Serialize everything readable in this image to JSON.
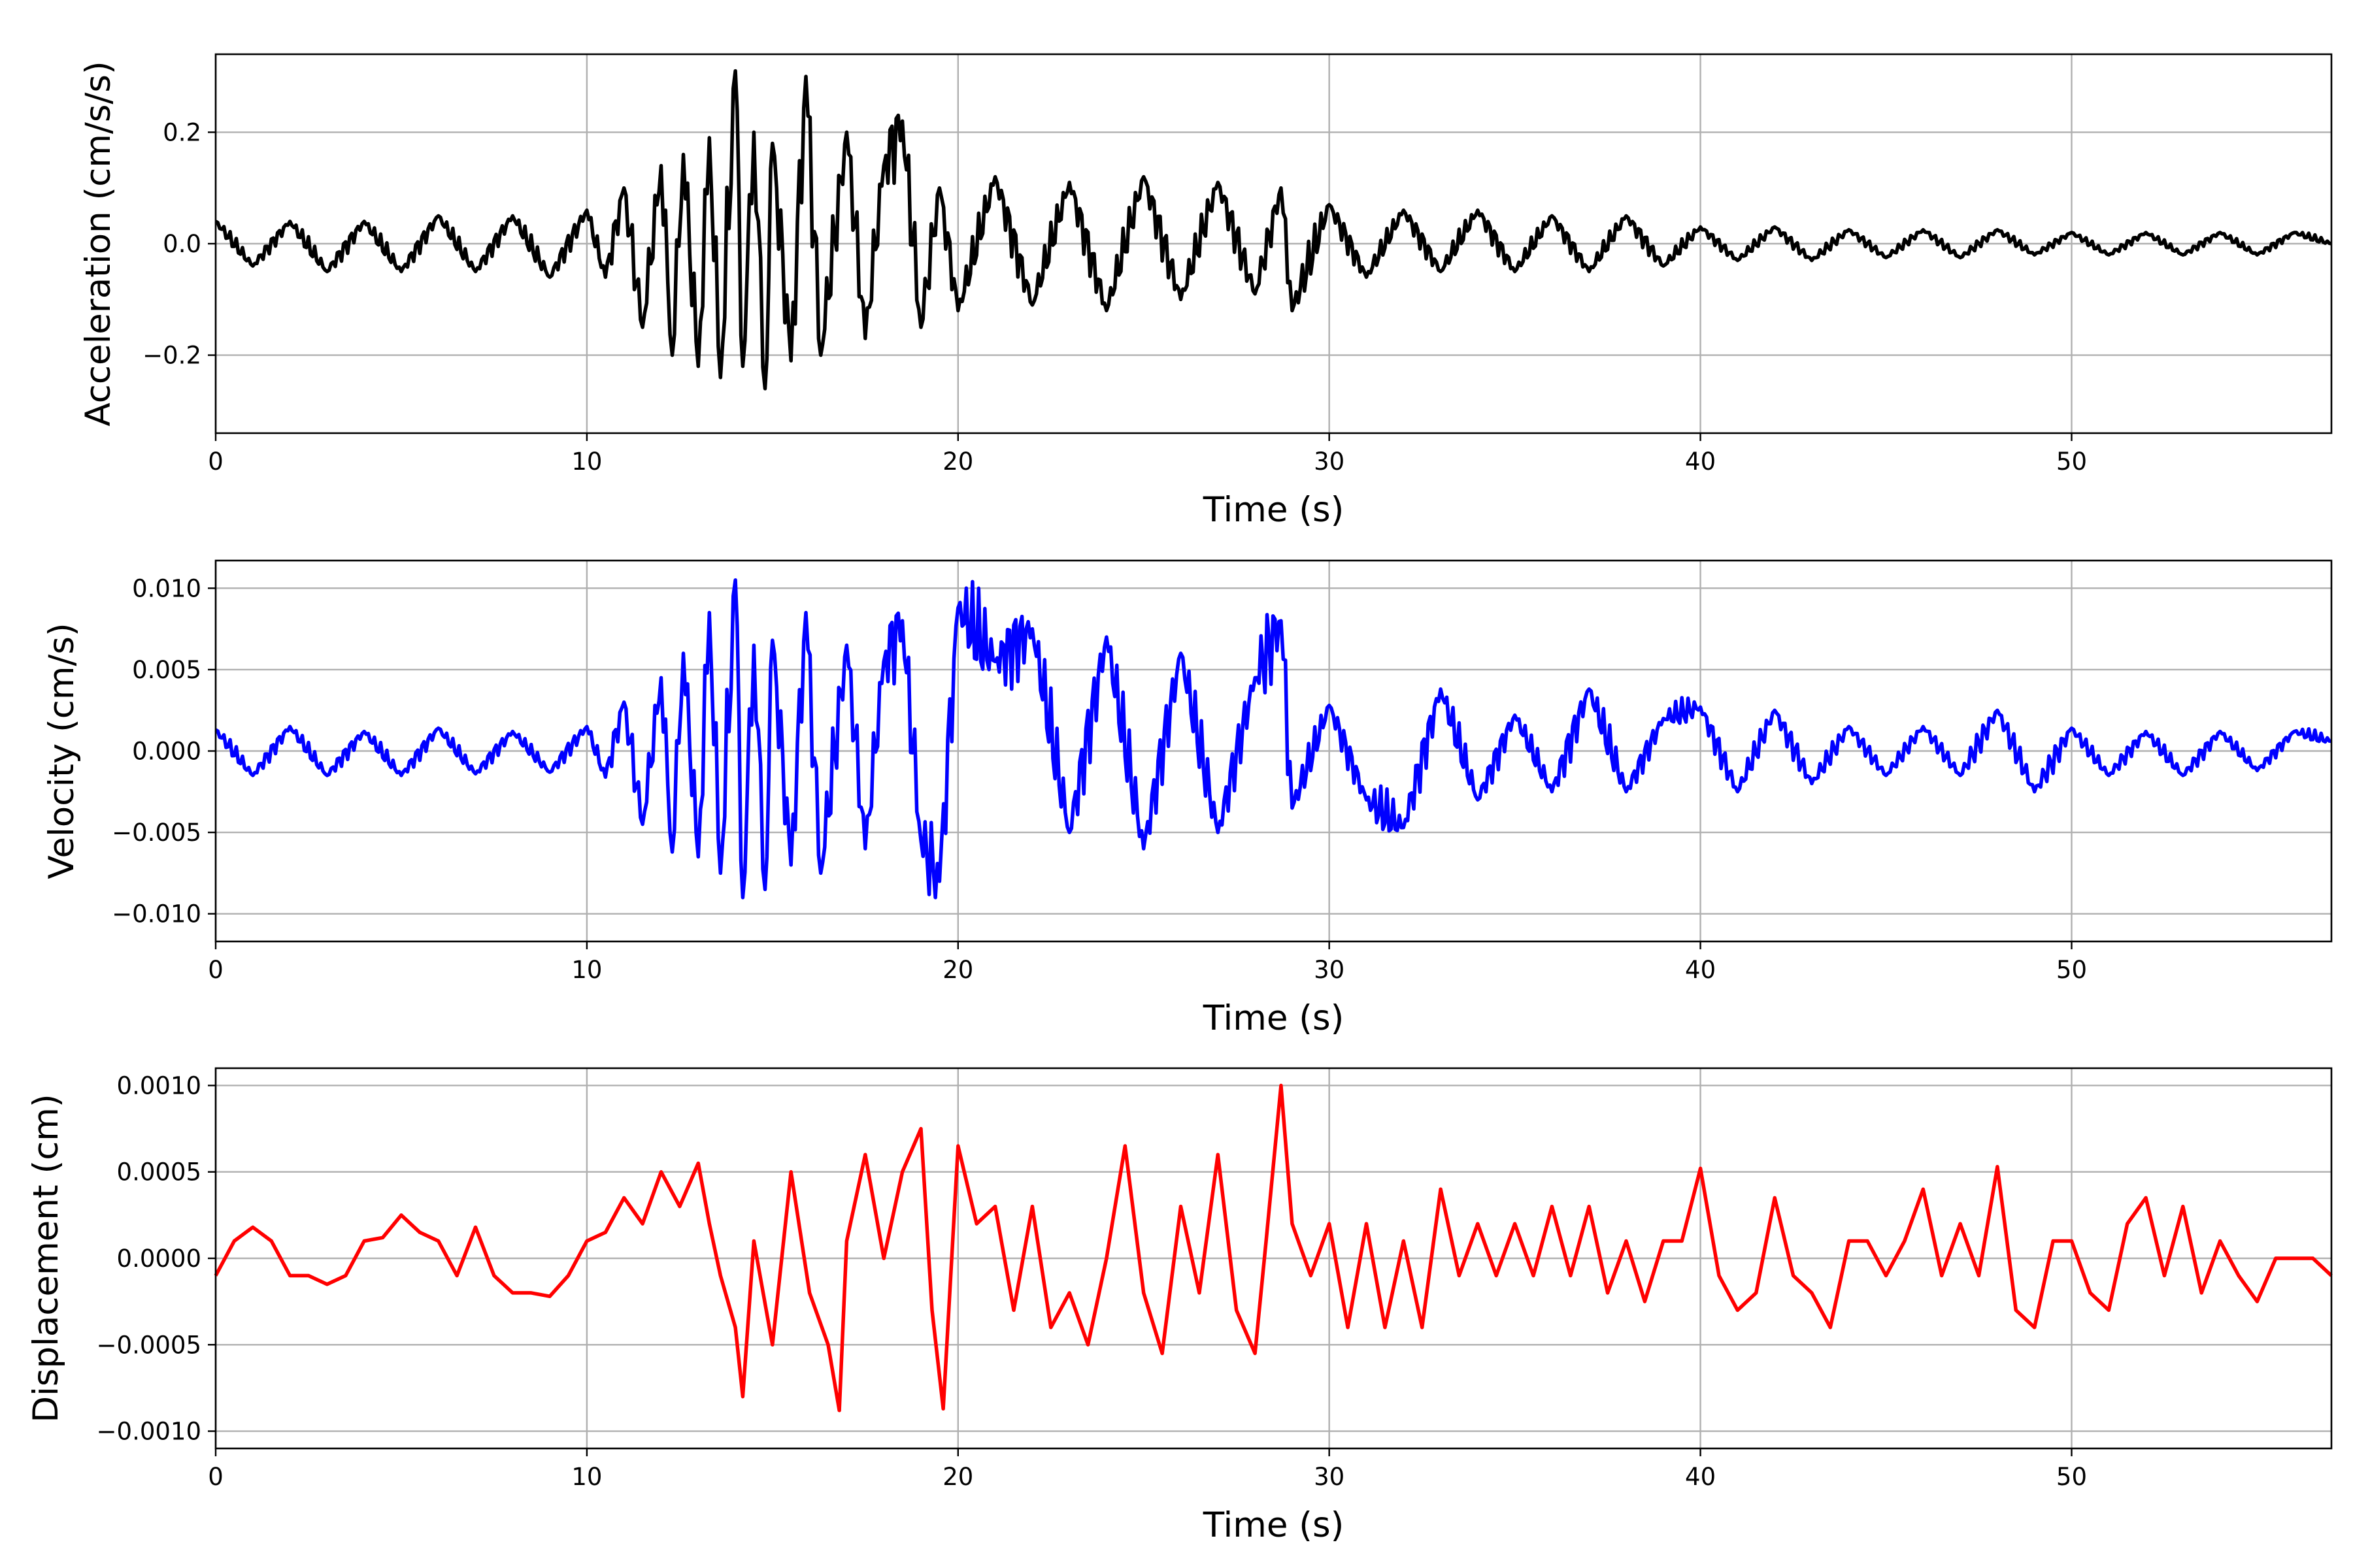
{
  "chart_data": [
    {
      "type": "line",
      "xlabel": "Time (s)",
      "ylabel": "Acceleration (cm/s/s)",
      "xlim": [
        0,
        57
      ],
      "ylim": [
        -0.34,
        0.34
      ],
      "xticks": [
        0,
        10,
        20,
        30,
        40,
        50
      ],
      "yticks": [
        -0.2,
        0.0,
        0.2
      ],
      "ytick_labels": [
        "−0.2",
        "0.0",
        "0.2"
      ],
      "grid": true,
      "color": "#000000",
      "series": [
        {
          "x": [
            0,
            1,
            2,
            3,
            4,
            5,
            6,
            7,
            8,
            9,
            10,
            10.5,
            11,
            11.5,
            12,
            12.3,
            12.6,
            13,
            13.3,
            13.6,
            14,
            14.2,
            14.5,
            14.8,
            15,
            15.5,
            15.9,
            16.3,
            17,
            17.5,
            18,
            18.5,
            19,
            19.5,
            20,
            21,
            22,
            23,
            24,
            25,
            26,
            27,
            28,
            28.7,
            29,
            30,
            31,
            32,
            33,
            34,
            35,
            36,
            37,
            38,
            39,
            40,
            41,
            42,
            43,
            44,
            45,
            46,
            47,
            48,
            49,
            50,
            51,
            52,
            53,
            54,
            55,
            56,
            57
          ],
          "y": [
            0.04,
            -0.04,
            0.04,
            -0.05,
            0.04,
            -0.05,
            0.05,
            -0.05,
            0.05,
            -0.06,
            0.06,
            -0.06,
            0.1,
            -0.15,
            0.14,
            -0.2,
            0.16,
            -0.22,
            0.19,
            -0.24,
            0.31,
            -0.22,
            0.2,
            -0.26,
            0.18,
            -0.21,
            0.3,
            -0.2,
            0.2,
            -0.17,
            0.14,
            0.22,
            -0.15,
            0.1,
            -0.12,
            0.12,
            -0.11,
            0.11,
            -0.12,
            0.12,
            -0.1,
            0.11,
            -0.09,
            0.1,
            -0.12,
            0.07,
            -0.06,
            0.06,
            -0.05,
            0.06,
            -0.05,
            0.05,
            -0.05,
            0.05,
            -0.04,
            0.03,
            -0.03,
            0.03,
            -0.03,
            0.025,
            -0.025,
            0.025,
            -0.025,
            0.025,
            -0.02,
            0.02,
            -0.02,
            0.02,
            -0.02,
            0.02,
            -0.02,
            0.02,
            0.0
          ]
        }
      ]
    },
    {
      "type": "line",
      "xlabel": "Time (s)",
      "ylabel": "Velocity (cm/s)",
      "xlim": [
        0,
        57
      ],
      "ylim": [
        -0.0117,
        0.0117
      ],
      "xticks": [
        0,
        10,
        20,
        30,
        40,
        50
      ],
      "yticks": [
        -0.01,
        -0.005,
        0.0,
        0.005,
        0.01
      ],
      "ytick_labels": [
        "−0.010",
        "−0.005",
        "0.000",
        "0.005",
        "0.010"
      ],
      "grid": true,
      "color": "#0000ff",
      "series": [
        {
          "x": [
            0,
            1,
            2,
            3,
            4,
            5,
            6,
            7,
            8,
            9,
            10,
            10.5,
            11,
            11.5,
            12,
            12.3,
            12.6,
            13,
            13.3,
            13.6,
            14,
            14.2,
            14.5,
            14.8,
            15,
            15.5,
            15.9,
            16.3,
            17,
            17.5,
            18,
            18.5,
            19,
            19.5,
            20,
            21,
            22,
            23,
            24,
            25,
            26,
            27,
            28,
            28.7,
            29,
            30,
            31,
            32,
            33,
            34,
            35,
            36,
            37,
            38,
            39,
            40,
            41,
            42,
            43,
            44,
            45,
            46,
            47,
            48,
            49,
            50,
            51,
            52,
            53,
            54,
            55,
            56,
            57
          ],
          "y": [
            0.0013,
            -0.0015,
            0.0015,
            -0.0015,
            0.0012,
            -0.0015,
            0.0014,
            -0.0014,
            0.0012,
            -0.0013,
            0.0015,
            -0.0016,
            0.003,
            -0.0045,
            0.0045,
            -0.0062,
            0.006,
            -0.0065,
            0.0085,
            -0.0075,
            0.0105,
            -0.009,
            0.0065,
            -0.0085,
            0.0068,
            -0.007,
            0.0085,
            -0.0075,
            0.0065,
            -0.006,
            0.0055,
            0.008,
            -0.0055,
            -0.008,
            0.0088,
            0.0055,
            0.0075,
            -0.005,
            0.007,
            -0.006,
            0.006,
            -0.005,
            0.0045,
            0.008,
            -0.0035,
            0.0028,
            -0.003,
            -0.0047,
            0.0038,
            -0.003,
            0.0022,
            -0.0025,
            0.0038,
            -0.0025,
            0.002,
            0.0027,
            -0.0025,
            0.0025,
            -0.002,
            0.0015,
            -0.0015,
            0.0015,
            -0.0015,
            0.0025,
            -0.0025,
            0.0014,
            -0.0015,
            0.0012,
            -0.0015,
            0.0012,
            -0.0012,
            0.0012,
            0.0006
          ]
        }
      ]
    },
    {
      "type": "line",
      "xlabel": "Time (s)",
      "ylabel": "Displacement (cm)",
      "xlim": [
        0,
        57
      ],
      "ylim": [
        -0.0011,
        0.0011
      ],
      "xticks": [
        0,
        10,
        20,
        30,
        40,
        50
      ],
      "yticks": [
        -0.001,
        -0.0005,
        0.0,
        0.0005,
        0.001
      ],
      "ytick_labels": [
        "−0.0010",
        "−0.0005",
        "0.0000",
        "0.0005",
        "0.0010"
      ],
      "grid": true,
      "color": "#ff0000",
      "series": [
        {
          "x": [
            0,
            0.5,
            1,
            1.5,
            2,
            2.5,
            3,
            3.5,
            4,
            4.5,
            5,
            5.5,
            6,
            6.5,
            7,
            7.5,
            8,
            8.5,
            9,
            9.5,
            10,
            10.5,
            11,
            11.5,
            12,
            12.5,
            13,
            13.3,
            13.6,
            14,
            14.2,
            14.5,
            15,
            15.5,
            16,
            16.5,
            16.8,
            17,
            17.5,
            18,
            18.5,
            19,
            19.3,
            19.6,
            20,
            20.5,
            21,
            21.5,
            22,
            22.5,
            23,
            23.5,
            24,
            24.5,
            25,
            25.5,
            26,
            26.5,
            27,
            27.5,
            28,
            28.3,
            28.7,
            29,
            29.5,
            30,
            30.5,
            31,
            31.5,
            32,
            32.5,
            33,
            33.5,
            34,
            34.5,
            35,
            35.5,
            36,
            36.5,
            37,
            37.5,
            38,
            38.5,
            39,
            39.5,
            40,
            40.5,
            41,
            41.5,
            42,
            42.5,
            43,
            43.5,
            44,
            44.5,
            45,
            45.5,
            46,
            46.5,
            47,
            47.5,
            48,
            48.5,
            49,
            49.5,
            50,
            50.5,
            51,
            51.5,
            52,
            52.5,
            53,
            53.5,
            54,
            54.5,
            55,
            55.5,
            56,
            56.5,
            57
          ],
          "y": [
            -0.0001,
            0.0001,
            0.00018,
            0.0001,
            -0.0001,
            -0.0001,
            -0.00015,
            -0.0001,
            0.0001,
            0.00012,
            0.00025,
            0.00015,
            0.0001,
            -0.0001,
            0.00018,
            -0.0001,
            -0.0002,
            -0.0002,
            -0.00022,
            -0.0001,
            0.0001,
            0.00015,
            0.00035,
            0.0002,
            0.0005,
            0.0003,
            0.00055,
            0.0002,
            -0.0001,
            -0.0004,
            -0.0008,
            0.0001,
            -0.0005,
            0.0005,
            -0.0002,
            -0.0005,
            -0.00088,
            0.0001,
            0.0006,
            0.0,
            0.0005,
            0.00075,
            -0.0003,
            -0.00087,
            0.00065,
            0.0002,
            0.0003,
            -0.0003,
            0.0003,
            -0.0004,
            -0.0002,
            -0.0005,
            0.0,
            0.00065,
            -0.0002,
            -0.00055,
            0.0003,
            -0.0002,
            0.0006,
            -0.0003,
            -0.00055,
            0.0001,
            0.001,
            0.0002,
            -0.0001,
            0.0002,
            -0.0004,
            0.0002,
            -0.0004,
            0.0001,
            -0.0004,
            0.0004,
            -0.0001,
            0.0002,
            -0.0001,
            0.0002,
            -0.0001,
            0.0003,
            -0.0001,
            0.0003,
            -0.0002,
            0.0001,
            -0.00025,
            0.0001,
            0.0001,
            0.00052,
            -0.0001,
            -0.0003,
            -0.0002,
            0.00035,
            -0.0001,
            -0.0002,
            -0.0004,
            0.0001,
            0.0001,
            -0.0001,
            0.0001,
            0.0004,
            -0.0001,
            0.0002,
            -0.0001,
            0.00053,
            -0.0003,
            -0.0004,
            0.0001,
            0.0001,
            -0.0002,
            -0.0003,
            0.0002,
            0.00035,
            -0.0001,
            0.0003,
            -0.0002,
            0.0001,
            -0.0001,
            -0.00025,
            0.0,
            0.0,
            0.0,
            -0.0001
          ]
        }
      ]
    }
  ]
}
